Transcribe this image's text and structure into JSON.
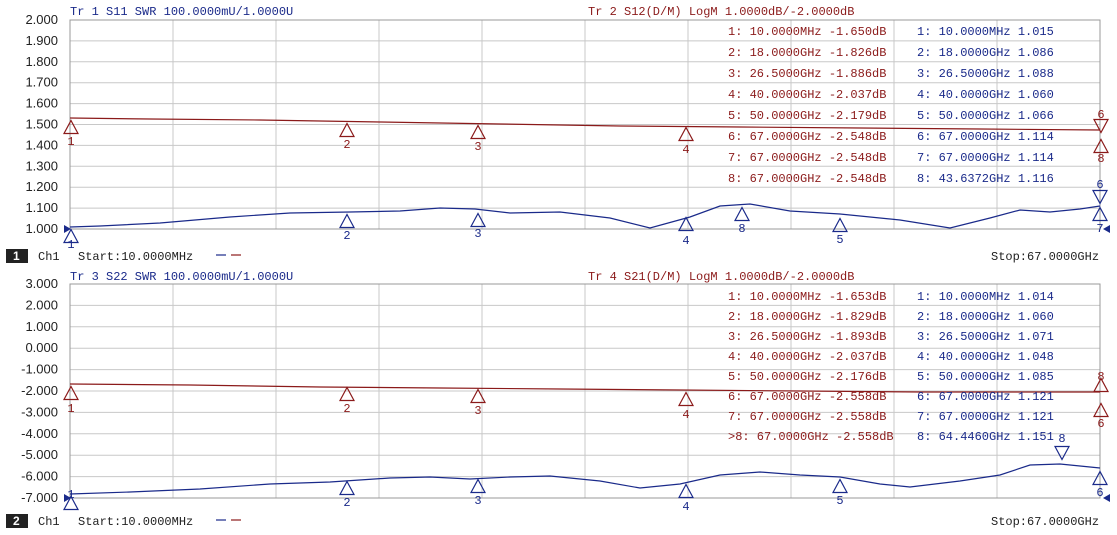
{
  "colors": {
    "trace_a": "#1a2a8a",
    "trace_b": "#8b1a1a",
    "grid": "#c8c8c8",
    "background": "#ffffff"
  },
  "channels": [
    {
      "id": "ch1",
      "badge": "1",
      "name": "Ch1",
      "start": "Start:10.0000MHz",
      "stop": "Stop:67.0000GHz",
      "yticks": [
        "2.000",
        "1.900",
        "1.800",
        "1.700",
        "1.600",
        "1.500",
        "1.400",
        "1.300",
        "1.200",
        "1.100",
        "1.000"
      ],
      "trace_left": {
        "title": "Tr 1  S11 SWR 100.0000mU/1.0000U",
        "color": "#1a2a8a"
      },
      "trace_right": {
        "title": "Tr 2  S12(D/M) LogM 1.0000dB/-2.0000dB",
        "color": "#8b1a1a"
      },
      "marker_table_red": [
        "1:   10.0000MHz -1.650dB",
        "2:   18.0000GHz -1.826dB",
        "3:   26.5000GHz -1.886dB",
        "4:   40.0000GHz -2.037dB",
        "5:   50.0000GHz -2.179dB",
        "6:   67.0000GHz -2.548dB",
        "7:   67.0000GHz -2.548dB",
        "8:   67.0000GHz -2.548dB"
      ],
      "marker_table_blue": [
        "1:   10.0000MHz 1.015",
        "2:   18.0000GHz 1.086",
        "3:   26.5000GHz 1.088",
        "4:   40.0000GHz 1.060",
        "5:   50.0000GHz 1.066",
        "6:   67.0000GHz 1.114",
        "7:   67.0000GHz 1.114",
        "8:   43.6372GHz 1.116"
      ]
    },
    {
      "id": "ch2",
      "badge": "2",
      "name": "Ch1",
      "start": "Start:10.0000MHz",
      "stop": "Stop:67.0000GHz",
      "yticks": [
        "3.000",
        "2.000",
        "1.000",
        "0.000",
        "-1.000",
        "-2.000",
        "-3.000",
        "-4.000",
        "-5.000",
        "-6.000",
        "-7.000"
      ],
      "trace_left": {
        "title": "Tr 3  S22 SWR 100.0000mU/1.0000U",
        "color": "#1a2a8a"
      },
      "trace_right": {
        "title": "Tr 4  S21(D/M) LogM 1.0000dB/-2.0000dB",
        "color": "#8b1a1a"
      },
      "marker_table_red": [
        "1:   10.0000MHz -1.653dB",
        "2:   18.0000GHz -1.829dB",
        "3:   26.5000GHz -1.893dB",
        "4:   40.0000GHz -2.037dB",
        "5:   50.0000GHz -2.176dB",
        "6:   67.0000GHz -2.558dB",
        "7:   67.0000GHz -2.558dB",
        ">8:  67.0000GHz -2.558dB"
      ],
      "marker_table_blue": [
        "1:   10.0000MHz 1.014",
        "2:   18.0000GHz 1.060",
        "3:   26.5000GHz 1.071",
        "4:   40.0000GHz 1.048",
        "5:   50.0000GHz 1.085",
        "6:   67.0000GHz 1.121",
        "7:   67.0000GHz 1.121",
        "8:   64.4460GHz 1.151"
      ]
    }
  ]
}
